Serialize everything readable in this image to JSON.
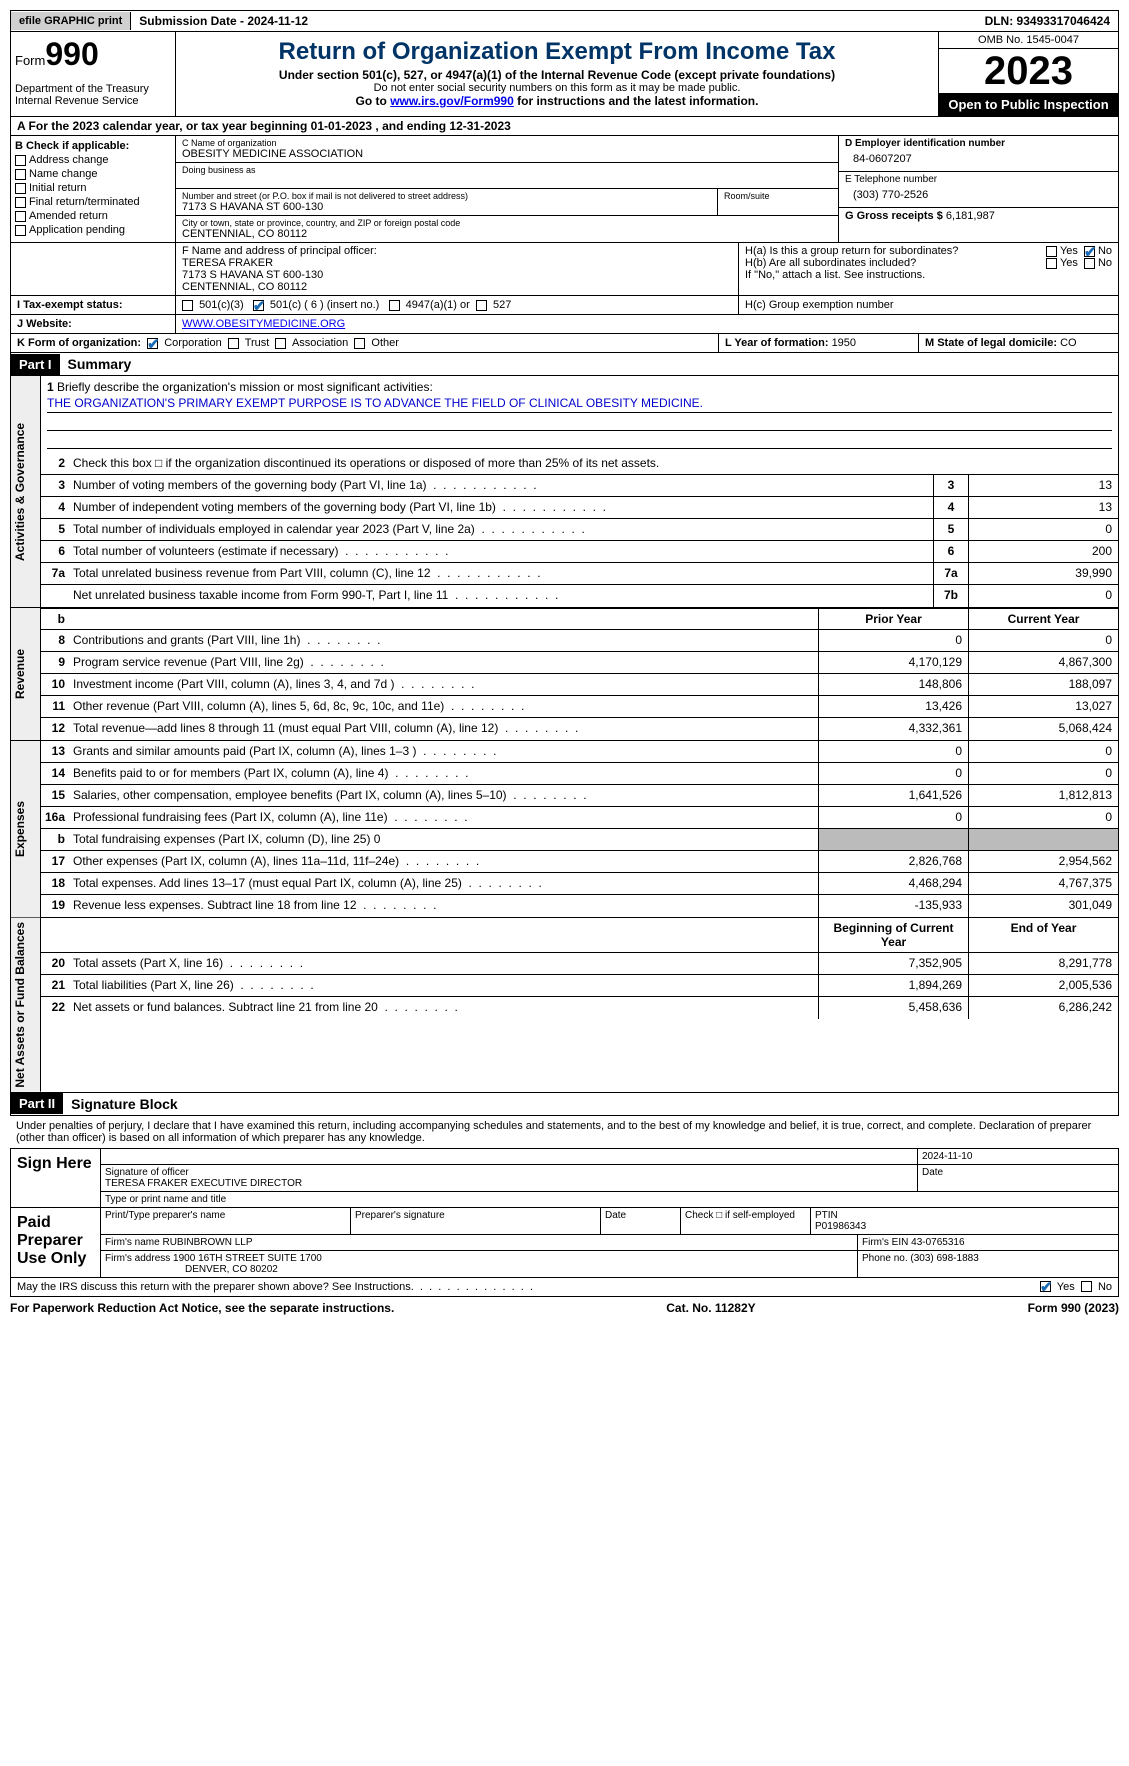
{
  "top": {
    "efile": "efile GRAPHIC print",
    "submission": "Submission Date - 2024-11-12",
    "dln": "DLN: 93493317046424"
  },
  "header": {
    "form_prefix": "Form",
    "form_num": "990",
    "title": "Return of Organization Exempt From Income Tax",
    "sub": "Under section 501(c), 527, or 4947(a)(1) of the Internal Revenue Code (except private foundations)",
    "nossn": "Do not enter social security numbers on this form as it may be made public.",
    "goto_pre": "Go to ",
    "goto_link": "www.irs.gov/Form990",
    "goto_post": " for instructions and the latest information.",
    "dept": "Department of the Treasury Internal Revenue Service",
    "omb": "OMB No. 1545-0047",
    "year": "2023",
    "open": "Open to Public Inspection"
  },
  "a": {
    "text_pre": "A For the 2023 calendar year, or tax year beginning ",
    "begin": "01-01-2023",
    "mid": " , and ending ",
    "end": "12-31-2023"
  },
  "b": {
    "title": "B Check if applicable:",
    "opts": [
      "Address change",
      "Name change",
      "Initial return",
      "Final return/terminated",
      "Amended return",
      "Application pending"
    ]
  },
  "c": {
    "name_label": "C Name of organization",
    "name": "OBESITY MEDICINE ASSOCIATION",
    "dba_label": "Doing business as",
    "dba": "",
    "street_label": "Number and street (or P.O. box if mail is not delivered to street address)",
    "street": "7173 S HAVANA ST 600-130",
    "room_label": "Room/suite",
    "city_label": "City or town, state or province, country, and ZIP or foreign postal code",
    "city": "CENTENNIAL, CO  80112"
  },
  "d": {
    "label": "D Employer identification number",
    "val": "84-0607207"
  },
  "e": {
    "label": "E Telephone number",
    "val": "(303) 770-2526"
  },
  "g": {
    "label": "G Gross receipts $ ",
    "val": "6,181,987"
  },
  "f": {
    "label": "F  Name and address of principal officer:",
    "name": "TERESA FRAKER",
    "addr1": "7173 S HAVANA ST 600-130",
    "addr2": "CENTENNIAL, CO  80112"
  },
  "h": {
    "ha_q": "H(a)  Is this a group return for subordinates?",
    "hb_q": "H(b)  Are all subordinates included?",
    "hb_note": "If \"No,\" attach a list. See instructions.",
    "hc": "H(c)  Group exemption number ",
    "yes": "Yes",
    "no": "No"
  },
  "i": {
    "label": "I  Tax-exempt status:",
    "o1": "501(c)(3)",
    "o2": "501(c) ( 6 ) (insert no.)",
    "o3": "4947(a)(1) or",
    "o4": "527"
  },
  "j": {
    "label": "J  Website:",
    "val": "WWW.OBESITYMEDICINE.ORG"
  },
  "k": {
    "label": "K Form of organization:",
    "opts": [
      "Corporation",
      "Trust",
      "Association",
      "Other"
    ]
  },
  "l": {
    "label": "L Year of formation: ",
    "val": "1950"
  },
  "m": {
    "label": "M State of legal domicile: ",
    "val": "CO"
  },
  "part1": {
    "hdr": "Part I",
    "title": "Summary"
  },
  "mission": {
    "q": "Briefly describe the organization's mission or most significant activities:",
    "val": "THE ORGANIZATION'S PRIMARY EXEMPT PURPOSE IS TO ADVANCE THE FIELD OF CLINICAL OBESITY MEDICINE."
  },
  "gov_lines": [
    {
      "n": "2",
      "t": "Check this box □ if the organization discontinued its operations or disposed of more than 25% of its net assets."
    },
    {
      "n": "3",
      "t": "Number of voting members of the governing body (Part VI, line 1a)",
      "rn": "3",
      "rv": "13"
    },
    {
      "n": "4",
      "t": "Number of independent voting members of the governing body (Part VI, line 1b)",
      "rn": "4",
      "rv": "13"
    },
    {
      "n": "5",
      "t": "Total number of individuals employed in calendar year 2023 (Part V, line 2a)",
      "rn": "5",
      "rv": "0"
    },
    {
      "n": "6",
      "t": "Total number of volunteers (estimate if necessary)",
      "rn": "6",
      "rv": "200"
    },
    {
      "n": "7a",
      "t": "Total unrelated business revenue from Part VIII, column (C), line 12",
      "rn": "7a",
      "rv": "39,990"
    },
    {
      "n": "",
      "t": "Net unrelated business taxable income from Form 990-T, Part I, line 11",
      "rn": "7b",
      "rv": "0"
    }
  ],
  "rev_hdr": {
    "b": "b",
    "prior": "Prior Year",
    "current": "Current Year"
  },
  "rev_lines": [
    {
      "n": "8",
      "t": "Contributions and grants (Part VIII, line 1h)",
      "p": "0",
      "c": "0"
    },
    {
      "n": "9",
      "t": "Program service revenue (Part VIII, line 2g)",
      "p": "4,170,129",
      "c": "4,867,300"
    },
    {
      "n": "10",
      "t": "Investment income (Part VIII, column (A), lines 3, 4, and 7d )",
      "p": "148,806",
      "c": "188,097"
    },
    {
      "n": "11",
      "t": "Other revenue (Part VIII, column (A), lines 5, 6d, 8c, 9c, 10c, and 11e)",
      "p": "13,426",
      "c": "13,027"
    },
    {
      "n": "12",
      "t": "Total revenue—add lines 8 through 11 (must equal Part VIII, column (A), line 12)",
      "p": "4,332,361",
      "c": "5,068,424"
    }
  ],
  "exp_lines": [
    {
      "n": "13",
      "t": "Grants and similar amounts paid (Part IX, column (A), lines 1–3 )",
      "p": "0",
      "c": "0"
    },
    {
      "n": "14",
      "t": "Benefits paid to or for members (Part IX, column (A), line 4)",
      "p": "0",
      "c": "0"
    },
    {
      "n": "15",
      "t": "Salaries, other compensation, employee benefits (Part IX, column (A), lines 5–10)",
      "p": "1,641,526",
      "c": "1,812,813"
    },
    {
      "n": "16a",
      "t": "Professional fundraising fees (Part IX, column (A), line 11e)",
      "p": "0",
      "c": "0"
    },
    {
      "n": "b",
      "t": "Total fundraising expenses (Part IX, column (D), line 25) 0",
      "p": "GREY",
      "c": "GREY"
    },
    {
      "n": "17",
      "t": "Other expenses (Part IX, column (A), lines 11a–11d, 11f–24e)",
      "p": "2,826,768",
      "c": "2,954,562"
    },
    {
      "n": "18",
      "t": "Total expenses. Add lines 13–17 (must equal Part IX, column (A), line 25)",
      "p": "4,468,294",
      "c": "4,767,375"
    },
    {
      "n": "19",
      "t": "Revenue less expenses. Subtract line 18 from line 12",
      "p": "-135,933",
      "c": "301,049"
    }
  ],
  "na_hdr": {
    "boy": "Beginning of Current Year",
    "eoy": "End of Year"
  },
  "na_lines": [
    {
      "n": "20",
      "t": "Total assets (Part X, line 16)",
      "p": "7,352,905",
      "c": "8,291,778"
    },
    {
      "n": "21",
      "t": "Total liabilities (Part X, line 26)",
      "p": "1,894,269",
      "c": "2,005,536"
    },
    {
      "n": "22",
      "t": "Net assets or fund balances. Subtract line 21 from line 20",
      "p": "5,458,636",
      "c": "6,286,242"
    }
  ],
  "part2": {
    "hdr": "Part II",
    "title": "Signature Block"
  },
  "sig_decl": "Under penalties of perjury, I declare that I have examined this return, including accompanying schedules and statements, and to the best of my knowledge and belief, it is true, correct, and complete. Declaration of preparer (other than officer) is based on all information of which preparer has any knowledge.",
  "sign": {
    "label": "Sign Here",
    "date": "2024-11-10",
    "sig_label": "Signature of officer",
    "officer": "TERESA FRAKER  EXECUTIVE DIRECTOR",
    "name_label": "Type or print name and title",
    "date_label": "Date"
  },
  "prep": {
    "label": "Paid Preparer Use Only",
    "name_label": "Print/Type preparer's name",
    "sig_label": "Preparer's signature",
    "date_label": "Date",
    "se_label": "Check □ if self-employed",
    "ptin_label": "PTIN",
    "ptin": "P01986343",
    "firm_label": "Firm's name    ",
    "firm": "RUBINBROWN LLP",
    "ein_label": "Firm's EIN  ",
    "ein": "43-0765316",
    "addr_label": "Firm's address ",
    "addr1": "1900 16TH STREET SUITE 1700",
    "addr2": "DENVER, CO  80202",
    "phone_label": "Phone no. ",
    "phone": "(303) 698-1883"
  },
  "discuss": {
    "q": "May the IRS discuss this return with the preparer shown above? See Instructions.",
    "yes": "Yes",
    "no": "No"
  },
  "footer": {
    "left": "For Paperwork Reduction Act Notice, see the separate instructions.",
    "mid": "Cat. No. 11282Y",
    "right_pre": "Form ",
    "right_b": "990",
    "right_post": " (2023)"
  },
  "vtabs": {
    "gov": "Activities & Governance",
    "rev": "Revenue",
    "exp": "Expenses",
    "na": "Net Assets or Fund Balances"
  }
}
